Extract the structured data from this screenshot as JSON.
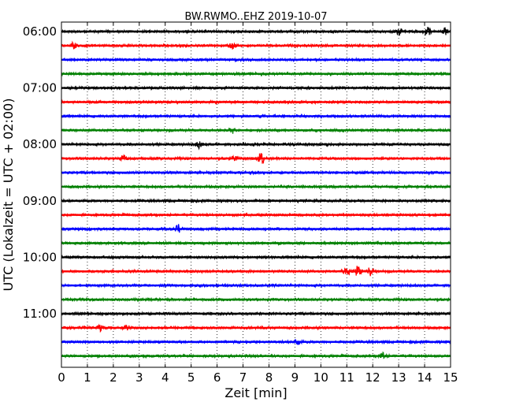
{
  "chart_data": {
    "type": "line",
    "title": "BW.RWMO..EHZ 2019-10-07",
    "xlabel": "Zeit  [min]",
    "ylabel": "UTC (Lokalzeit = UTC + 02:00)",
    "xlim": [
      0,
      15
    ],
    "x_ticks": [
      "0",
      "1",
      "2",
      "3",
      "4",
      "5",
      "6",
      "7",
      "8",
      "9",
      "10",
      "11",
      "12",
      "13",
      "14",
      "15"
    ],
    "y_ticks": [
      "06:00",
      "07:00",
      "08:00",
      "09:00",
      "10:00",
      "11:00"
    ],
    "row_interval_min": 15,
    "first_row": "06:00",
    "last_row": "11:45",
    "row_count": 24,
    "grid": "vertical dotted at each minute",
    "series_colors": [
      "#000000",
      "#ff0000",
      "#0000ff",
      "#008000"
    ],
    "events": [
      {
        "row": 0,
        "x": 13.0,
        "amp": 1.2
      },
      {
        "row": 0,
        "x": 14.1,
        "amp": 1.3
      },
      {
        "row": 0,
        "x": 14.8,
        "amp": 1.0
      },
      {
        "row": 1,
        "x": 0.5,
        "amp": 1.0
      },
      {
        "row": 1,
        "x": 6.6,
        "amp": 1.2
      },
      {
        "row": 7,
        "x": 6.6,
        "amp": 1.0
      },
      {
        "row": 8,
        "x": 5.3,
        "amp": 1.0
      },
      {
        "row": 9,
        "x": 2.4,
        "amp": 1.0
      },
      {
        "row": 9,
        "x": 6.7,
        "amp": 1.0
      },
      {
        "row": 9,
        "x": 7.7,
        "amp": 2.0
      },
      {
        "row": 14,
        "x": 4.5,
        "amp": 1.3
      },
      {
        "row": 17,
        "x": 11.0,
        "amp": 1.2
      },
      {
        "row": 17,
        "x": 11.4,
        "amp": 2.3
      },
      {
        "row": 17,
        "x": 11.9,
        "amp": 1.2
      },
      {
        "row": 21,
        "x": 1.5,
        "amp": 1.2
      },
      {
        "row": 21,
        "x": 2.5,
        "amp": 1.0
      },
      {
        "row": 22,
        "x": 9.1,
        "amp": 1.0
      },
      {
        "row": 23,
        "x": 12.4,
        "amp": 1.1
      }
    ]
  }
}
